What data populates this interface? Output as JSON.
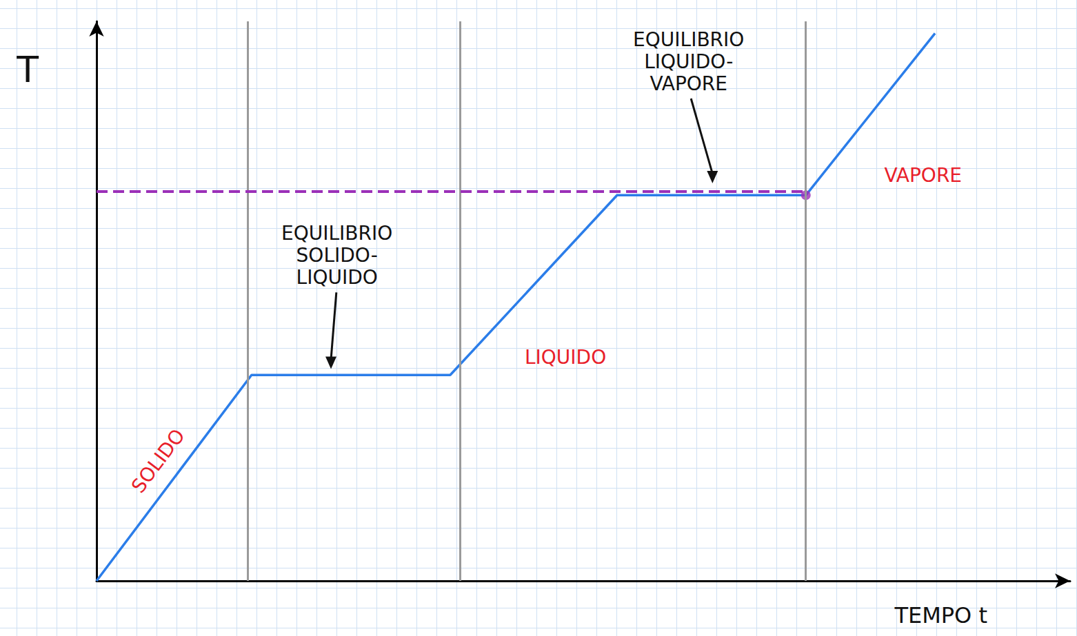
{
  "chart_data": {
    "type": "line",
    "x_label": "TEMPO t",
    "y_label": "T",
    "x": [
      0,
      7.8,
      17.8,
      26.2,
      35.7,
      42.2
    ],
    "values": [
      0,
      10.3,
      10.3,
      19.3,
      19.3,
      27.4
    ],
    "color": "#2b7de9",
    "xlim": [
      0,
      49
    ],
    "ylim": [
      0,
      28
    ],
    "tick_labels": false,
    "grid": true,
    "phase_boundaries": [
      7.6,
      18.3,
      35.7
    ],
    "reference_line": {
      "y": 19.5,
      "x_end": 35.7,
      "color": "#9b30b8",
      "line_style": "dashed"
    },
    "marked_point": {
      "x": 35.7,
      "y": 19.3,
      "color": "#9b30b8"
    },
    "annotations": [
      {
        "text": "SOLIDO",
        "x": 3.1,
        "y": 6.0,
        "color": "#e8202a"
      },
      {
        "text": "EQUILIBRIO SOLIDO-LIQUIDO",
        "x": 12.1,
        "y": 16.3,
        "color": "#111111",
        "arrow_to": [
          11.8,
          10.6
        ]
      },
      {
        "text": "LIQUIDO",
        "x": 23.6,
        "y": 11.2,
        "color": "#e8202a"
      },
      {
        "text": "EQUILIBRIO LIQUIDO-VAPORE",
        "x": 29.8,
        "y": 26.0,
        "color": "#111111",
        "arrow_to": [
          31.0,
          19.9
        ]
      },
      {
        "text": "VAPORE",
        "x": 41.6,
        "y": 20.3,
        "color": "#e8202a"
      }
    ]
  }
}
